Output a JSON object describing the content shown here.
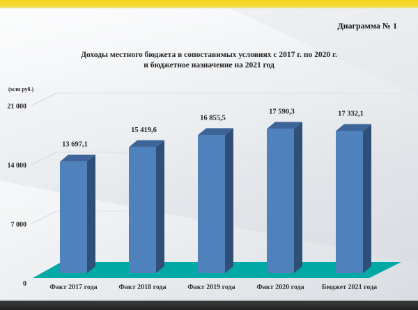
{
  "header": {
    "diagram_label": "Диаграмма № 1",
    "title_line1": "Доходы местного бюджета в сопоставимых условиях с 2017 г. по 2020 г.",
    "title_line2": "и бюджетное назначение на 2021 год",
    "unit": "(млн руб.)"
  },
  "colors": {
    "top_band": "#f7d41d",
    "bar_front": "#4f81bd",
    "bar_side": "#2f4f78",
    "bar_top": "#3d6599",
    "floor": "#00a9a5",
    "bottom_band": "#2a2a2a"
  },
  "chart_data": {
    "type": "bar",
    "title": "Доходы местного бюджета в сопоставимых условиях с 2017 г. по 2020 г. и бюджетное назначение на 2021 год",
    "xlabel": "",
    "ylabel": "(млн руб.)",
    "categories": [
      "Факт 2017 года",
      "Факт 2018 года",
      "Факт 2019 года",
      "Факт 2020 года",
      "Бюджет 2021 года"
    ],
    "values": [
      13697.1,
      15419.6,
      16855.5,
      17590.3,
      17332.1
    ],
    "value_labels": [
      "13 697,1",
      "15 419,6",
      "16 855,5",
      "17 590,3",
      "17 332,1"
    ],
    "yticks": [
      0,
      7000,
      14000,
      21000
    ],
    "ytick_labels": [
      "0",
      "7 000",
      "14 000",
      "21 000"
    ],
    "ylim": [
      0,
      21000
    ],
    "grid": true,
    "legend": null,
    "style": "3d-column"
  }
}
